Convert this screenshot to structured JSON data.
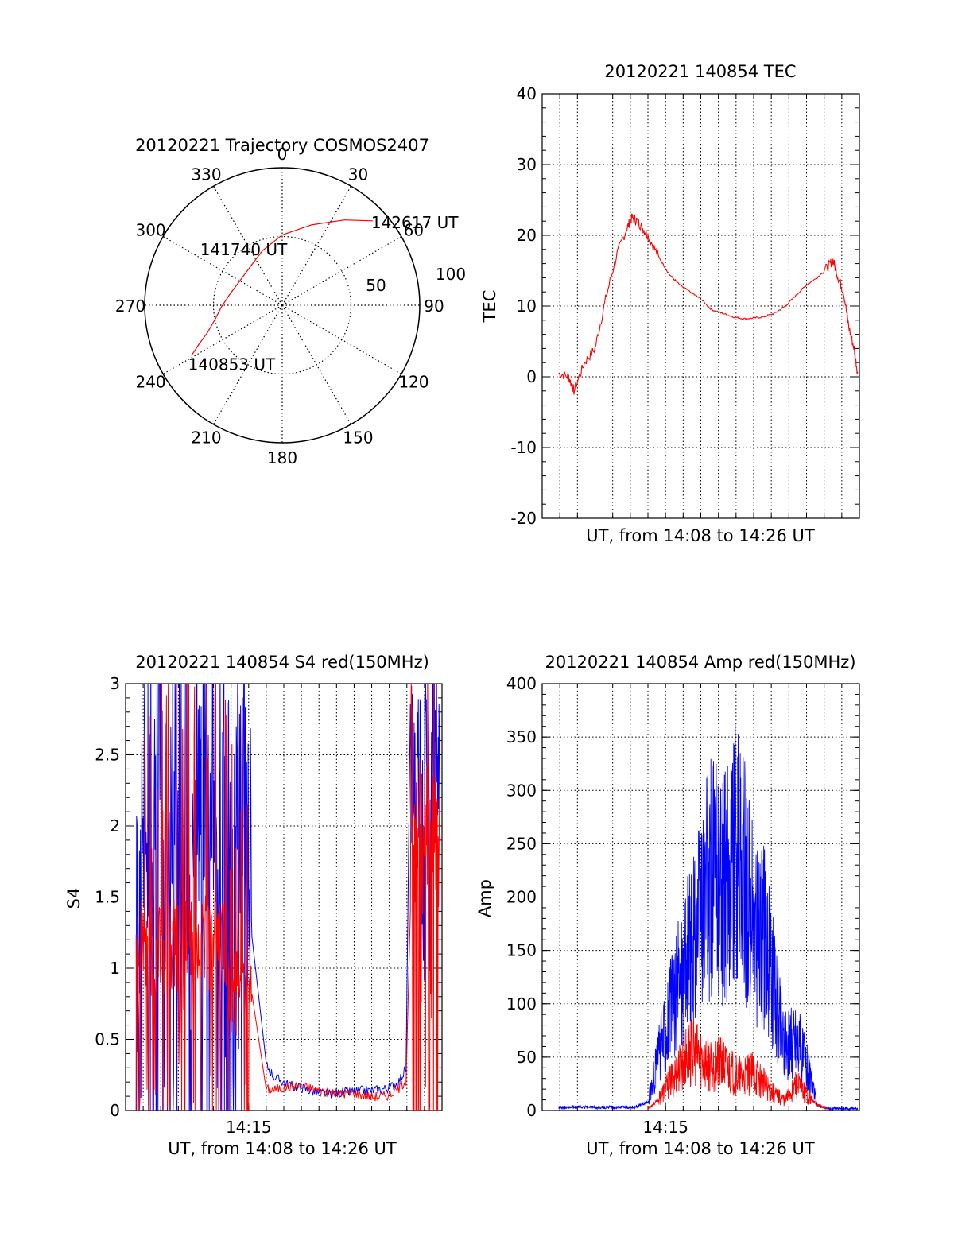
{
  "chart_data": [
    {
      "type": "polar",
      "title": "20120221 Trajectory COSMOS2407",
      "azimuth_labels": [
        "0",
        "30",
        "60",
        "90",
        "120",
        "150",
        "180",
        "210",
        "240",
        "270",
        "300",
        "330"
      ],
      "radial_labels": [
        "50",
        "100"
      ],
      "grid": true,
      "series": [
        {
          "color": "#ff0000",
          "points": [
            {
              "azimuth": 241,
              "elevation": 22
            },
            {
              "azimuth": 245,
              "elevation": 30
            },
            {
              "azimuth": 250,
              "elevation": 38
            },
            {
              "azimuth": 258,
              "elevation": 45
            },
            {
              "azimuth": 268,
              "elevation": 50
            },
            {
              "azimuth": 282,
              "elevation": 55
            },
            {
              "azimuth": 300,
              "elevation": 58
            },
            {
              "azimuth": 322,
              "elevation": 57
            },
            {
              "azimuth": 340,
              "elevation": 52
            },
            {
              "azimuth": 0,
              "elevation": 44
            },
            {
              "azimuth": 20,
              "elevation": 34
            },
            {
              "azimuth": 36,
              "elevation": 21
            },
            {
              "azimuth": 47,
              "elevation": 9
            }
          ]
        }
      ],
      "annotations": [
        {
          "text": "142617 UT",
          "azimuth": 47,
          "elevation": 9
        },
        {
          "text": "141740 UT",
          "azimuth": 300,
          "elevation": 58
        },
        {
          "text": "140853 UT",
          "azimuth": 241,
          "elevation": 22
        }
      ]
    },
    {
      "type": "line",
      "title": "20120221 140854 TEC",
      "xlabel": "UT, from 14:08 to 14:26 UT",
      "ylabel": "TEC",
      "xlim": [
        14.1333,
        14.4333
      ],
      "ylim": [
        -20,
        40
      ],
      "yticks": [
        "-20",
        "-10",
        "0",
        "10",
        "20",
        "30",
        "40"
      ],
      "grid": true,
      "series": [
        {
          "color": "#ff0000",
          "x": [
            14.1489,
            14.1583,
            14.1633,
            14.1733,
            14.1833,
            14.1933,
            14.2033,
            14.2133,
            14.2183,
            14.2233,
            14.2283,
            14.2333,
            14.2433,
            14.2533,
            14.2633,
            14.2733,
            14.2833,
            14.2933,
            14.3033,
            14.3133,
            14.3233,
            14.3333,
            14.3433,
            14.3533,
            14.3633,
            14.3733,
            14.3833,
            14.3933,
            14.4033,
            14.4083,
            14.4133,
            14.4183,
            14.4233,
            14.4283,
            14.4317
          ],
          "y": [
            0.5,
            0,
            -2,
            2,
            4,
            11,
            17,
            21,
            22.5,
            22,
            21,
            20,
            17,
            14.5,
            13,
            12,
            11,
            9.5,
            9,
            8.5,
            8.2,
            8.3,
            8.5,
            9,
            10,
            11.5,
            13,
            14,
            15.5,
            16.5,
            14,
            12,
            7,
            4,
            0.5
          ]
        }
      ]
    },
    {
      "type": "line",
      "title": "20120221 140854 S4 red(150MHz)",
      "xlabel": "UT, from 14:08 to 14:26 UT",
      "ylabel": "S4",
      "xticks": [
        "14:15"
      ],
      "ylim": [
        0,
        3
      ],
      "yticks": [
        "0",
        "0.5",
        "1",
        "1.5",
        "2",
        "2.5",
        "3"
      ],
      "grid": true,
      "series": [
        {
          "color": "#0000ff",
          "x": [
            14.2667,
            14.275,
            14.2833,
            14.2917,
            14.3,
            14.3083,
            14.3167,
            14.325,
            14.3333,
            14.3417,
            14.35,
            14.3583,
            14.3667,
            14.375,
            14.3833,
            14.3917,
            14.4
          ],
          "y": [
            0.32,
            0.23,
            0.2,
            0.17,
            0.16,
            0.14,
            0.12,
            0.12,
            0.12,
            0.13,
            0.13,
            0.14,
            0.14,
            0.15,
            0.16,
            0.2,
            0.3
          ]
        },
        {
          "color": "#ff0000",
          "x": [
            14.2667,
            14.275,
            14.2833,
            14.2917,
            14.3,
            14.3083,
            14.3167,
            14.325,
            14.3333,
            14.3417,
            14.35,
            14.3583,
            14.3667,
            14.375,
            14.3833,
            14.3917,
            14.4
          ],
          "y": [
            0.15,
            0.15,
            0.16,
            0.17,
            0.17,
            0.16,
            0.14,
            0.13,
            0.12,
            0.12,
            0.12,
            0.11,
            0.1,
            0.1,
            0.11,
            0.15,
            0.22
          ]
        }
      ]
    },
    {
      "type": "line",
      "title": "20120221 140854 Amp red(150MHz)",
      "xlabel": "UT, from 14:08 to 14:26 UT",
      "ylabel": "Amp",
      "xticks": [
        "14:15"
      ],
      "ylim": [
        0,
        400
      ],
      "yticks": [
        "0",
        "50",
        "100",
        "150",
        "200",
        "250",
        "300",
        "350",
        "400"
      ],
      "grid": true,
      "series": [
        {
          "color": "#0000ff",
          "x": [
            14.1489,
            14.1833,
            14.22,
            14.2333,
            14.2433,
            14.2533,
            14.2633,
            14.2733,
            14.2833,
            14.2933,
            14.3033,
            14.3133,
            14.3233,
            14.3333,
            14.3433,
            14.3533,
            14.3633,
            14.3733,
            14.3833,
            14.3933,
            14.4033,
            14.4133,
            14.4317
          ],
          "y": [
            3,
            3,
            3,
            8,
            50,
            90,
            120,
            150,
            180,
            220,
            200,
            240,
            220,
            170,
            160,
            110,
            60,
            70,
            45,
            5,
            2,
            2,
            2
          ]
        },
        {
          "color": "#ff0000",
          "x": [
            14.2333,
            14.2433,
            14.2533,
            14.2633,
            14.2733,
            14.2833,
            14.2933,
            14.3033,
            14.3133,
            14.3233,
            14.3333,
            14.3433,
            14.3533,
            14.3633,
            14.3733,
            14.3833,
            14.3933,
            14.4033
          ],
          "y": [
            2,
            10,
            25,
            40,
            55,
            50,
            40,
            45,
            35,
            30,
            35,
            25,
            15,
            10,
            25,
            15,
            5,
            2
          ]
        }
      ]
    }
  ]
}
